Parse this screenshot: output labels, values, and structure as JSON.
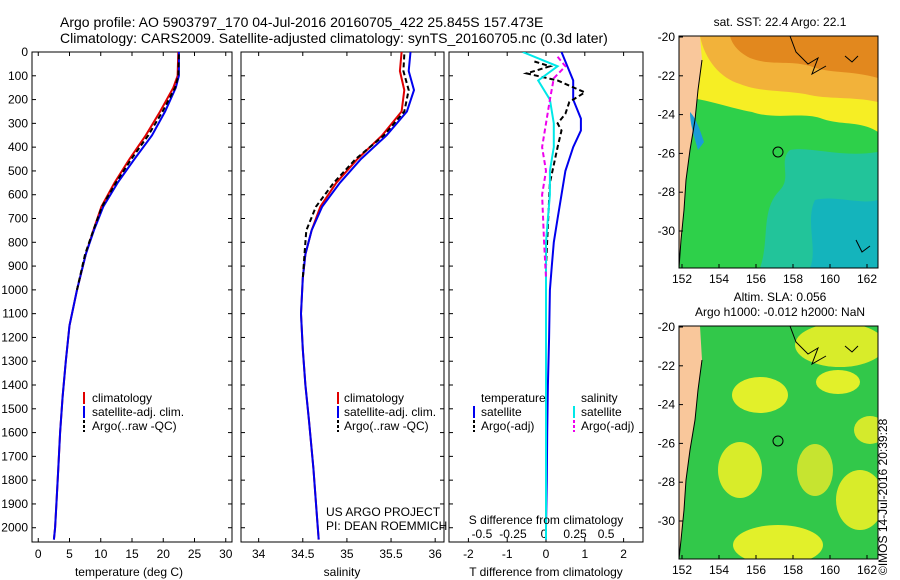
{
  "title_line1": "Argo profile: AO 5903797_170 04-Jul-2016 20160705_422 25.845S 157.473E",
  "title_line2": "Climatology: CARS2009. Satellite-adjusted climatology: synTS_20160705.nc (0.3d later)",
  "side_stamp": "©IMOS 14-Jul-2016 20:39:28",
  "project_line1": "US ARGO PROJECT",
  "project_line2": "PI: DEAN ROEMMICH",
  "colors": {
    "climatology": "#e00000",
    "satellite": "#0000ee",
    "argo": "#000000",
    "sal_satellite": "#00e8e8",
    "sal_argo": "#ee00ee"
  },
  "chart_data": [
    {
      "type": "line",
      "id": "temperature",
      "xlabel": "temperature (deg C)",
      "xlim": [
        -1,
        31
      ],
      "xticks": [
        0,
        5,
        10,
        15,
        20,
        25,
        30
      ],
      "ylim": [
        0,
        2060
      ],
      "yticks": [
        0,
        100,
        200,
        300,
        400,
        500,
        600,
        700,
        800,
        900,
        1000,
        1100,
        1200,
        1300,
        1400,
        1500,
        1600,
        1700,
        1800,
        1900,
        2000
      ],
      "legend": [
        "climatology",
        "satellite-adj. clim.",
        "Argo(..raw -QC)"
      ],
      "series": [
        {
          "name": "climatology",
          "color": "#e00000",
          "dash": "",
          "x": [
            22.4,
            22.3,
            21.6,
            19.5,
            17.2,
            14.6,
            12.2,
            10.1,
            8.8,
            7.6,
            6.2,
            5.0,
            4.4,
            3.9,
            3.5,
            3.2,
            2.9,
            2.7,
            2.5
          ],
          "y": [
            0,
            100,
            150,
            250,
            350,
            450,
            550,
            650,
            750,
            850,
            1000,
            1150,
            1300,
            1450,
            1600,
            1750,
            1900,
            2000,
            2050
          ]
        },
        {
          "name": "satellite-adj. clim.",
          "color": "#0000ee",
          "dash": "",
          "x": [
            22.5,
            22.5,
            22.0,
            20.3,
            18.2,
            15.4,
            12.7,
            10.4,
            8.9,
            7.6,
            6.2,
            5.0,
            4.4,
            3.9,
            3.5,
            3.2,
            2.9,
            2.7,
            2.5
          ],
          "y": [
            0,
            100,
            150,
            250,
            350,
            450,
            550,
            650,
            750,
            850,
            1000,
            1150,
            1300,
            1450,
            1600,
            1750,
            1900,
            2000,
            2050
          ]
        },
        {
          "name": "Argo(..raw -QC)",
          "color": "#000000",
          "dash": "5,3",
          "x": [
            22.5,
            22.4,
            21.9,
            19.9,
            17.6,
            14.9,
            12.4,
            10.2,
            8.8,
            7.5,
            6.2
          ],
          "y": [
            10,
            100,
            150,
            250,
            350,
            450,
            550,
            650,
            750,
            850,
            1000
          ]
        }
      ]
    },
    {
      "type": "line",
      "id": "salinity",
      "xlabel": "salinity",
      "xlim": [
        33.8,
        36.1
      ],
      "xticks": [
        34,
        34.5,
        35,
        35.5,
        36
      ],
      "ylim": [
        0,
        2060
      ],
      "yticks": [
        0,
        100,
        200,
        300,
        400,
        500,
        600,
        700,
        800,
        900,
        1000,
        1100,
        1200,
        1300,
        1400,
        1500,
        1600,
        1700,
        1800,
        1900,
        2000
      ],
      "legend": [
        "climatology",
        "satellite-adj. clim.",
        "Argo(..raw -QC)"
      ],
      "series": [
        {
          "name": "climatology",
          "color": "#e00000",
          "dash": "",
          "x": [
            35.62,
            35.6,
            35.65,
            35.62,
            35.4,
            35.12,
            34.88,
            34.7,
            34.6,
            34.53,
            34.5,
            34.48,
            34.5,
            34.53,
            34.57,
            34.62,
            34.66,
            34.68
          ],
          "y": [
            0,
            80,
            160,
            250,
            350,
            450,
            550,
            650,
            750,
            850,
            950,
            1100,
            1250,
            1400,
            1550,
            1750,
            1950,
            2050
          ]
        },
        {
          "name": "satellite-adj. clim.",
          "color": "#0000ee",
          "dash": "",
          "x": [
            35.72,
            35.7,
            35.76,
            35.68,
            35.45,
            35.16,
            34.92,
            34.72,
            34.6,
            34.53,
            34.5,
            34.48,
            34.5,
            34.53,
            34.57,
            34.62,
            34.66,
            34.68
          ],
          "y": [
            0,
            80,
            160,
            250,
            350,
            450,
            550,
            650,
            750,
            850,
            950,
            1100,
            1250,
            1400,
            1550,
            1750,
            1950,
            2050
          ]
        },
        {
          "name": "Argo(..raw -QC)",
          "color": "#000000",
          "dash": "5,3",
          "x": [
            35.65,
            35.64,
            35.7,
            35.65,
            35.42,
            35.1,
            34.85,
            34.65,
            34.54,
            34.52,
            34.5
          ],
          "y": [
            10,
            80,
            160,
            250,
            350,
            450,
            550,
            650,
            750,
            850,
            950
          ]
        }
      ]
    },
    {
      "type": "line",
      "id": "difference",
      "xlabel": "T difference from climatology",
      "x2label": "S difference from climatology",
      "xlim": [
        -2.5,
        2.5
      ],
      "xticks": [
        -2,
        -1,
        0,
        1,
        2
      ],
      "x2ticklabels": [
        "-0.5",
        "-0.25",
        "0",
        "0.25",
        "0.5"
      ],
      "ylim": [
        0,
        2060
      ],
      "yticks": [
        0,
        100,
        200,
        300,
        400,
        500,
        600,
        700,
        800,
        900,
        1000,
        1100,
        1200,
        1300,
        1400,
        1500,
        1600,
        1700,
        1800,
        1900,
        2000
      ],
      "legend_temp_title": "temperature",
      "legend_sal_title": "salinity",
      "legend_temp": [
        "satellite",
        "Argo(-adj)"
      ],
      "legend_sal": [
        "satellite",
        "Argo(-adj)"
      ],
      "series": [
        {
          "name": "T satellite",
          "color": "#0000ee",
          "dash": "",
          "x": [
            0.4,
            0.5,
            0.6,
            0.7,
            0.7,
            0.9,
            0.9,
            0.7,
            0.6,
            0.5,
            0.4,
            0.3,
            0.2,
            0.15,
            0.1,
            0.08,
            0.05,
            0.03,
            0.02,
            0.0,
            0.0
          ],
          "y": [
            0,
            40,
            80,
            120,
            200,
            280,
            330,
            400,
            450,
            500,
            600,
            700,
            800,
            900,
            1000,
            1200,
            1400,
            1600,
            1800,
            2000,
            2050
          ]
        },
        {
          "name": "T Argo(-adj)",
          "color": "#000000",
          "dash": "5,3",
          "x": [
            -0.3,
            0.1,
            -0.5,
            0.3,
            1.0,
            0.6,
            0.5,
            0.3,
            0.4,
            0.3,
            0.1,
            0.0
          ],
          "y": [
            40,
            60,
            90,
            120,
            170,
            210,
            260,
            300,
            330,
            400,
            550,
            900
          ]
        },
        {
          "name": "S satellite",
          "color": "#00e8e8",
          "dash": "",
          "x": [
            -0.6,
            0.3,
            -0.2,
            0.1,
            0.2,
            0.2,
            0.1,
            0.1,
            0.05,
            0.0,
            0.0,
            0.0
          ],
          "y": [
            0,
            60,
            120,
            200,
            300,
            400,
            500,
            600,
            700,
            800,
            1000,
            2050
          ]
        },
        {
          "name": "S Argo(-adj)",
          "color": "#ee00ee",
          "dash": "5,3",
          "x": [
            0.3,
            0.5,
            0.2,
            0.1,
            0.0,
            -0.1,
            0.0,
            -0.1,
            -0.05,
            0.0
          ],
          "y": [
            20,
            60,
            110,
            200,
            300,
            400,
            500,
            600,
            800,
            950
          ]
        }
      ]
    },
    {
      "type": "heatmap",
      "id": "sst_map",
      "title": "sat. SST: 22.4  Argo: 22.1",
      "xticks": [
        "152",
        "154",
        "156",
        "158",
        "160",
        "162"
      ],
      "yticks": [
        "-20",
        "-22",
        "-24",
        "-26",
        "-28",
        "-30"
      ]
    },
    {
      "type": "heatmap",
      "id": "sla_map",
      "title_line1": "Altim. SLA: 0.056",
      "title_line2": "Argo h1000: -0.012 h2000: NaN",
      "xticks": [
        "152",
        "154",
        "156",
        "158",
        "160",
        "162"
      ],
      "yticks": [
        "-20",
        "-22",
        "-24",
        "-26",
        "-28",
        "-30"
      ]
    }
  ]
}
